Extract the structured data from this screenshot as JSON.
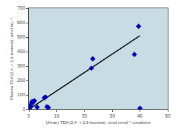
{
  "chart_data": {
    "type": "scatter",
    "xlabel": "Urinary TDA (2,4- + 2,6-isomers), nmol mmol⁻¹ creatinine",
    "ylabel": "Plasma TDA (2,4- + 2,6-isomers), pmol mL⁻¹",
    "series": [
      {
        "type": "line",
        "line_style": "solid",
        "color": "#000000",
        "x": [
          0,
          40
        ],
        "values": [
          0,
          510
        ]
      },
      {
        "type": "scatter",
        "marker": "diamond",
        "color": "#0000bb",
        "x": [
          0.1,
          0.2,
          0.3,
          0.4,
          0.5,
          0.7,
          1.0,
          1.2,
          1.5,
          2.0,
          3.0,
          5.5,
          6.0,
          6.5,
          7.0,
          22.5,
          23.0,
          38.0,
          39.5,
          40.0
        ],
        "values": [
          5,
          8,
          12,
          18,
          28,
          22,
          45,
          55,
          48,
          60,
          15,
          80,
          85,
          18,
          12,
          285,
          350,
          380,
          575,
          8
        ]
      }
    ],
    "xlim": [
      0,
      50
    ],
    "ylim": [
      0,
      700
    ],
    "xticks": [
      0,
      10,
      20,
      30,
      40,
      50
    ],
    "yticks": [
      0,
      100,
      200,
      300,
      400,
      500,
      600,
      700
    ],
    "grid": false
  }
}
